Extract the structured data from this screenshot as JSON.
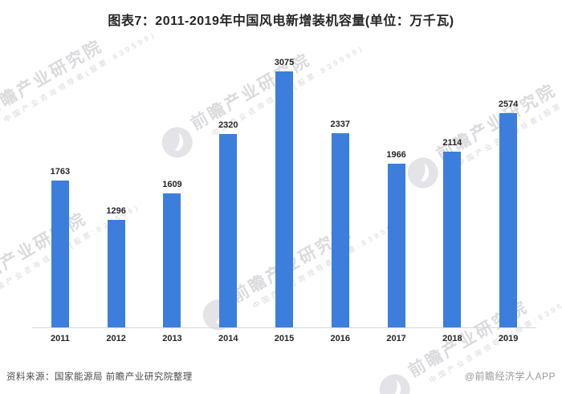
{
  "title": "图表7：2011-2019年中国风电新增装机容量(单位：万千瓦)",
  "chart_data": {
    "type": "bar",
    "title": "图表7：2011-2019年中国风电新增装机容量(单位：万千瓦)",
    "unit": "万千瓦",
    "categories": [
      "2011",
      "2012",
      "2013",
      "2014",
      "2015",
      "2016",
      "2017",
      "2018",
      "2019"
    ],
    "values": [
      1763,
      1296,
      1609,
      2320,
      3075,
      2337,
      1966,
      2114,
      2574
    ],
    "xlabel": "",
    "ylabel": "",
    "ylim": [
      0,
      3500
    ],
    "grid": false,
    "legend": "none",
    "value_labels_shown": true,
    "bar_color": "#3C7EDC"
  },
  "watermark": {
    "icon": "qianzhan-logo",
    "text": "前瞻产业研究院",
    "subtitle": "中国产业咨询领导者(股票:839599)"
  },
  "footer": {
    "source": "资料来源：国家能源局 前瞻产业研究院整理",
    "credit": "@前瞻经济学人APP"
  },
  "colors": {
    "bar": "#3C7EDC",
    "axis_line": "#D9D9D9",
    "title_text": "#262626",
    "label_text": "#262626",
    "source_text": "#4A4A4A",
    "credit_text": "#9A9A9A",
    "watermark_text": "#DBDBDF",
    "watermark_logo": "#E4E4E8",
    "background": "#FFFFFF"
  }
}
